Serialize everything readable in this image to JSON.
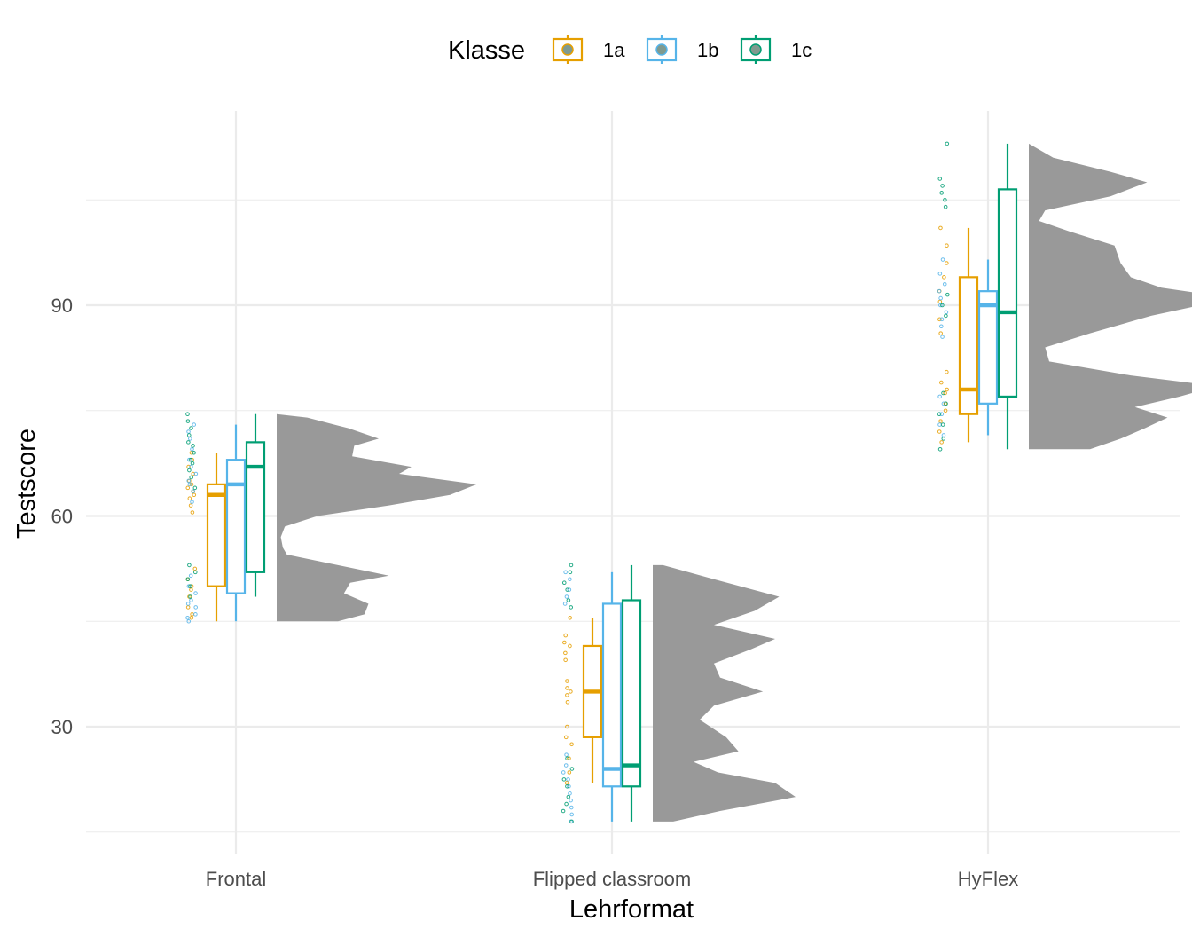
{
  "chart_data": {
    "type": "raincloud",
    "xlabel": "Lehrformat",
    "ylabel": "Testscore",
    "ylim": [
      12.5,
      115
    ],
    "yticks": [
      30,
      60,
      90
    ],
    "categories": [
      "Frontal",
      "Flipped classroom",
      "HyFlex"
    ],
    "legend": {
      "title": "Klasse",
      "position": "top",
      "items": [
        {
          "label": "1a",
          "color": "#E69F00"
        },
        {
          "label": "1b",
          "color": "#56B4E9"
        },
        {
          "label": "1c",
          "color": "#009E73"
        }
      ]
    },
    "boxplots": [
      {
        "category": "Frontal",
        "group": "1a",
        "min": 45,
        "q1": 50,
        "median": 63,
        "q3": 64.5,
        "max": 69
      },
      {
        "category": "Frontal",
        "group": "1b",
        "min": 45,
        "q1": 49,
        "median": 64.5,
        "q3": 68,
        "max": 73
      },
      {
        "category": "Frontal",
        "group": "1c",
        "min": 48.5,
        "q1": 52,
        "median": 67,
        "q3": 70.5,
        "max": 74.5
      },
      {
        "category": "Flipped classroom",
        "group": "1a",
        "min": 22,
        "q1": 28.5,
        "median": 35,
        "q3": 41.5,
        "max": 45.5
      },
      {
        "category": "Flipped classroom",
        "group": "1b",
        "min": 16.5,
        "q1": 21.5,
        "median": 24,
        "q3": 47.5,
        "max": 52
      },
      {
        "category": "Flipped classroom",
        "group": "1c",
        "min": 16.5,
        "q1": 21.5,
        "median": 24.5,
        "q3": 48,
        "max": 53
      },
      {
        "category": "HyFlex",
        "group": "1a",
        "min": 70.5,
        "q1": 74.5,
        "median": 78,
        "q3": 94,
        "max": 101
      },
      {
        "category": "HyFlex",
        "group": "1b",
        "min": 71.5,
        "q1": 76,
        "median": 90,
        "q3": 92,
        "max": 96.5
      },
      {
        "category": "HyFlex",
        "group": "1c",
        "min": 69.5,
        "q1": 77,
        "median": 89,
        "q3": 106.5,
        "max": 113
      }
    ],
    "densities": [
      {
        "category": "Frontal",
        "y": [
          45,
          46,
          47.5,
          49,
          50.5,
          51.5,
          53,
          54.5,
          55.5,
          57,
          58.5,
          60,
          61.5,
          63,
          64.5,
          66,
          67,
          68.5,
          70,
          71,
          72.5,
          74,
          74.5
        ],
        "density": [
          0.3,
          0.43,
          0.45,
          0.33,
          0.36,
          0.55,
          0.3,
          0.05,
          0.03,
          0.02,
          0.04,
          0.2,
          0.55,
          0.85,
          0.98,
          0.6,
          0.66,
          0.37,
          0.38,
          0.5,
          0.35,
          0.15,
          0.0
        ]
      },
      {
        "category": "Flipped classroom",
        "y": [
          16.5,
          18,
          20,
          22,
          23.5,
          25,
          26.5,
          28.5,
          31,
          33,
          35,
          37,
          39,
          41,
          42.5,
          44.5,
          46.5,
          48.5,
          51,
          53
        ],
        "density": [
          0.1,
          0.33,
          0.7,
          0.6,
          0.32,
          0.2,
          0.42,
          0.36,
          0.23,
          0.3,
          0.54,
          0.33,
          0.3,
          0.48,
          0.6,
          0.3,
          0.5,
          0.62,
          0.3,
          0.05
        ]
      },
      {
        "category": "HyFlex",
        "y": [
          69.5,
          71,
          72.5,
          74,
          75.5,
          77,
          78.5,
          80,
          82,
          84,
          86,
          88.5,
          91,
          92.5,
          94,
          96,
          98.5,
          100.5,
          102,
          103.5,
          105.5,
          107.5,
          109,
          111,
          113
        ],
        "density": [
          0.3,
          0.45,
          0.57,
          0.68,
          0.52,
          0.74,
          0.92,
          0.5,
          0.1,
          0.08,
          0.3,
          0.6,
          1.0,
          0.65,
          0.5,
          0.45,
          0.42,
          0.2,
          0.05,
          0.08,
          0.4,
          0.58,
          0.4,
          0.12,
          0.0
        ]
      }
    ],
    "points": [
      {
        "category": "Frontal",
        "group": "1a",
        "y": [
          45.5,
          46,
          47,
          48.5,
          49.5,
          50,
          51,
          52.5,
          60.5,
          61.5,
          62.5,
          63,
          63.5,
          64,
          64.5,
          65,
          66,
          67,
          68,
          69
        ]
      },
      {
        "category": "Frontal",
        "group": "1b",
        "y": [
          45,
          45.5,
          46,
          47,
          47.5,
          48,
          49,
          50,
          51.5,
          62,
          63.5,
          64.5,
          65,
          66,
          67,
          68,
          69.5,
          71,
          72,
          73
        ]
      },
      {
        "category": "Frontal",
        "group": "1c",
        "y": [
          48.5,
          50,
          51,
          52,
          53,
          64,
          65.5,
          66.5,
          67.5,
          68,
          69,
          70,
          70.5,
          71.5,
          72.5,
          73.5,
          74.5
        ]
      },
      {
        "category": "Flipped classroom",
        "group": "1a",
        "y": [
          22,
          23.5,
          25.5,
          27.5,
          28.5,
          30,
          33.5,
          34.5,
          35,
          35.5,
          36.5,
          39.5,
          40.5,
          41.5,
          42,
          43,
          45.5
        ]
      },
      {
        "category": "Flipped classroom",
        "group": "1b",
        "y": [
          16.5,
          17.5,
          18.5,
          19.5,
          20.5,
          21.5,
          22.5,
          23.5,
          24.5,
          26,
          47.5,
          48.5,
          49.5,
          51,
          52
        ]
      },
      {
        "category": "Flipped classroom",
        "group": "1c",
        "y": [
          16.5,
          18,
          19,
          20,
          21.5,
          22.5,
          24,
          25.5,
          47,
          48,
          49.5,
          50.5,
          52,
          53
        ]
      },
      {
        "category": "HyFlex",
        "group": "1a",
        "y": [
          70.5,
          72,
          73.5,
          75,
          76,
          77.5,
          78,
          79,
          80.5,
          86,
          88,
          90.5,
          92,
          94,
          96,
          98.5,
          101
        ]
      },
      {
        "category": "HyFlex",
        "group": "1b",
        "y": [
          71.5,
          73,
          74.5,
          76,
          77,
          85.5,
          87,
          88,
          89,
          90,
          91,
          92,
          93,
          94.5,
          96.5
        ]
      },
      {
        "category": "HyFlex",
        "group": "1c",
        "y": [
          69.5,
          71,
          73,
          74.5,
          76,
          77.5,
          88.5,
          90,
          91.5,
          104,
          105,
          106,
          107,
          108,
          113
        ]
      }
    ]
  }
}
